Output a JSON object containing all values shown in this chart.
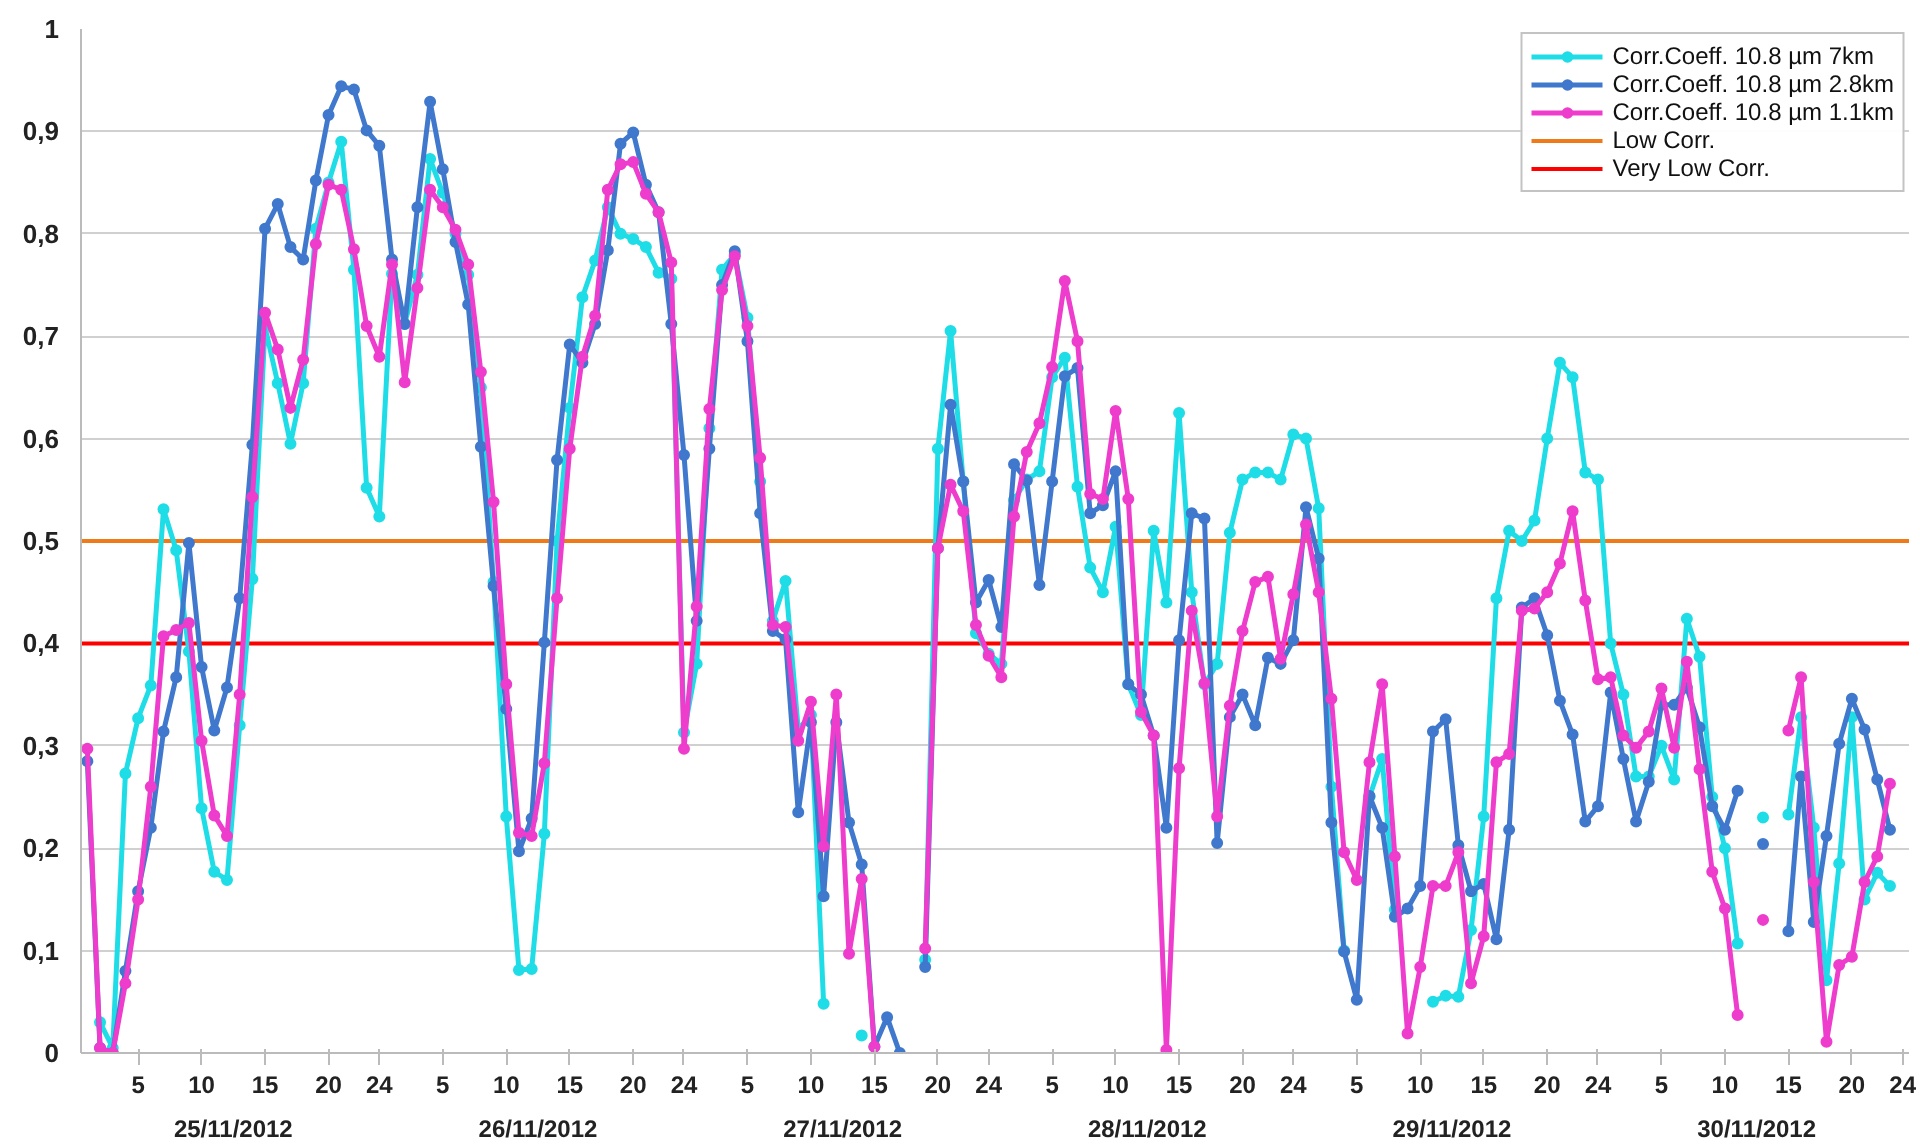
{
  "chart_data": {
    "type": "line",
    "categories": [
      null,
      null,
      null,
      null,
      "5",
      null,
      null,
      null,
      null,
      "10",
      null,
      null,
      null,
      null,
      "15",
      null,
      null,
      null,
      null,
      "20",
      null,
      null,
      null,
      "24",
      null,
      null,
      null,
      null,
      "5",
      null,
      null,
      null,
      null,
      "10",
      null,
      null,
      null,
      null,
      "15",
      null,
      null,
      null,
      null,
      "20",
      null,
      null,
      null,
      "24",
      null,
      null,
      null,
      null,
      "5",
      null,
      null,
      null,
      null,
      "10",
      null,
      null,
      null,
      null,
      "15",
      null,
      null,
      null,
      null,
      "20",
      null,
      null,
      null,
      "24",
      null,
      null,
      null,
      null,
      "5",
      null,
      null,
      null,
      null,
      "10",
      null,
      null,
      null,
      null,
      "15",
      null,
      null,
      null,
      null,
      "20",
      null,
      null,
      null,
      "24",
      null,
      null,
      null,
      null,
      "5",
      null,
      null,
      null,
      null,
      "10",
      null,
      null,
      null,
      null,
      "15",
      null,
      null,
      null,
      null,
      "20",
      null,
      null,
      null,
      "24",
      null,
      null,
      null,
      null,
      "5",
      null,
      null,
      null,
      null,
      "10",
      null,
      null,
      null,
      null,
      "15",
      null,
      null,
      null,
      null,
      "20",
      null,
      null,
      null,
      "24"
    ],
    "series": [
      {
        "name": "Corr.Coeff. 10.8 µm 7km",
        "color": "#1fdde6",
        "values": [
          null,
          0.03,
          0.005,
          0.273,
          0.327,
          0.359,
          0.531,
          0.491,
          0.392,
          0.239,
          0.177,
          0.169,
          0.32,
          0.463,
          0.709,
          0.654,
          0.595,
          0.654,
          0.805,
          0.85,
          0.89,
          0.765,
          0.552,
          0.524,
          0.761,
          0.712,
          0.76,
          0.873,
          0.84,
          0.8,
          0.76,
          0.65,
          0.46,
          0.231,
          0.081,
          0.082,
          0.214,
          0.5,
          0.63,
          0.738,
          0.774,
          0.826,
          0.8,
          0.795,
          0.787,
          0.762,
          0.756,
          0.313,
          0.38,
          0.61,
          0.765,
          0.78,
          0.718,
          0.558,
          0.422,
          0.461,
          0.316,
          0.33,
          0.048,
          null,
          null,
          0.017,
          null,
          null,
          null,
          null,
          0.091,
          0.59,
          0.705,
          0.558,
          0.41,
          0.39,
          0.38,
          0.54,
          0.56,
          0.568,
          0.66,
          0.679,
          0.553,
          0.474,
          0.45,
          0.514,
          0.36,
          0.33,
          0.51,
          0.44,
          0.625,
          0.45,
          0.36,
          0.38,
          0.508,
          0.56,
          0.567,
          0.567,
          0.56,
          0.604,
          0.6,
          0.532,
          0.26,
          0.1,
          null,
          0.25,
          0.287,
          0.14,
          null,
          null,
          0.05,
          0.056,
          0.055,
          0.12,
          0.231,
          0.444,
          0.51,
          0.5,
          0.52,
          0.6,
          0.674,
          0.66,
          0.567,
          0.56,
          0.4,
          0.35,
          0.27,
          0.27,
          0.3,
          0.267,
          0.424,
          0.387,
          0.25,
          0.2,
          0.107,
          null,
          0.23,
          null,
          0.233,
          0.328,
          0.22,
          0.071,
          0.185,
          0.328,
          0.15,
          0.176,
          0.163,
          null
        ]
      },
      {
        "name": "Corr.Coeff. 10.8 µm 2.8km",
        "color": "#3f78cc",
        "values": [
          0.285,
          0.005,
          0,
          0.08,
          0.158,
          0.22,
          0.314,
          0.367,
          0.498,
          0.377,
          0.315,
          0.357,
          0.444,
          0.594,
          0.805,
          0.829,
          0.787,
          0.775,
          0.852,
          0.916,
          0.944,
          0.941,
          0.901,
          0.886,
          0.775,
          0.712,
          0.826,
          0.929,
          0.863,
          0.792,
          0.731,
          0.592,
          0.456,
          0.336,
          0.197,
          0.229,
          0.401,
          0.579,
          0.692,
          0.674,
          0.712,
          0.784,
          0.888,
          0.899,
          0.848,
          0.821,
          0.712,
          0.584,
          0.422,
          0.59,
          0.75,
          0.783,
          0.695,
          0.527,
          0.412,
          0.404,
          0.235,
          0.323,
          0.153,
          0.323,
          0.225,
          0.184,
          0.006,
          0.035,
          0,
          null,
          0.084,
          0.493,
          0.633,
          0.558,
          0.44,
          0.462,
          0.416,
          0.575,
          0.559,
          0.457,
          0.558,
          0.661,
          0.669,
          0.527,
          0.535,
          0.568,
          0.36,
          0.35,
          0.31,
          0.22,
          0.403,
          0.527,
          0.522,
          0.205,
          0.328,
          0.35,
          0.32,
          0.386,
          0.38,
          0.403,
          0.533,
          0.483,
          0.225,
          0.099,
          0.052,
          0.251,
          0.22,
          0.133,
          0.141,
          0.163,
          0.314,
          0.326,
          0.203,
          0.158,
          0.165,
          0.111,
          0.218,
          0.435,
          0.444,
          0.408,
          0.344,
          0.311,
          0.226,
          0.241,
          0.352,
          0.287,
          0.226,
          0.265,
          0.34,
          0.34,
          0.357,
          0.318,
          0.241,
          0.218,
          0.256,
          null,
          0.204,
          null,
          0.119,
          0.27,
          0.128,
          0.212,
          0.302,
          0.346,
          0.316,
          0.267,
          0.218,
          null
        ]
      },
      {
        "name": "Corr.Coeff. 10.8 µm 1.1km",
        "color": "#ee3ccc",
        "values": [
          0.297,
          0.005,
          0,
          0.068,
          0.15,
          0.26,
          0.407,
          0.413,
          0.42,
          0.305,
          0.232,
          0.212,
          0.35,
          0.543,
          0.723,
          0.687,
          0.63,
          0.677,
          0.79,
          0.848,
          0.843,
          0.785,
          0.71,
          0.68,
          0.77,
          0.655,
          0.747,
          0.843,
          0.826,
          0.804,
          0.77,
          0.665,
          0.538,
          0.36,
          0.215,
          0.212,
          0.283,
          0.444,
          0.59,
          0.68,
          0.72,
          0.843,
          0.868,
          0.87,
          0.839,
          0.821,
          0.772,
          0.297,
          0.436,
          0.629,
          0.745,
          0.778,
          0.71,
          0.581,
          0.418,
          0.416,
          0.305,
          0.343,
          0.202,
          0.35,
          0.097,
          0.17,
          0.006,
          null,
          null,
          null,
          0.102,
          0.493,
          0.555,
          0.529,
          0.418,
          0.388,
          0.367,
          0.524,
          0.587,
          0.615,
          0.67,
          0.754,
          0.695,
          0.546,
          0.541,
          0.627,
          0.541,
          0.333,
          0.31,
          0.003,
          0.278,
          0.432,
          0.361,
          0.231,
          0.339,
          0.412,
          0.46,
          0.465,
          0.385,
          0.448,
          0.516,
          0.45,
          0.346,
          0.196,
          0.169,
          0.284,
          0.36,
          0.192,
          0.019,
          0.084,
          0.163,
          0.163,
          0.196,
          0.068,
          0.114,
          0.284,
          0.292,
          0.432,
          0.434,
          0.45,
          0.478,
          0.529,
          0.442,
          0.365,
          0.367,
          0.31,
          0.298,
          0.314,
          0.356,
          0.298,
          0.382,
          0.277,
          0.177,
          0.141,
          0.037,
          null,
          0.13,
          null,
          0.315,
          0.367,
          0.167,
          0.011,
          0.086,
          0.094,
          0.167,
          0.192,
          0.263,
          null
        ]
      }
    ],
    "ref_lines": [
      {
        "axis": "y",
        "value": 0.5,
        "label": "Low Corr.",
        "color": "#ee7a1a"
      },
      {
        "axis": "y",
        "value": 0.4,
        "label": "Very Low Corr.",
        "color": "#ff0000"
      }
    ],
    "ylim": [
      0,
      1
    ],
    "yticks": [
      0,
      {
        "value": 0.1,
        "label": "0,1"
      },
      {
        "value": 0.2,
        "label": "0,2"
      },
      {
        "value": 0.3,
        "label": "0,3"
      },
      {
        "value": 0.4,
        "label": "0,4"
      },
      {
        "value": 0.5,
        "label": "0,5"
      },
      {
        "value": 0.6,
        "label": "0,6"
      },
      {
        "value": 0.7,
        "label": "0,7"
      },
      {
        "value": 0.8,
        "label": "0,8"
      },
      {
        "value": 0.9,
        "label": "0,9"
      },
      1
    ],
    "annotations": [
      "25/11/2012",
      "26/11/2012",
      "27/11/2012",
      "28/11/2012",
      "29/11/2012",
      "30/11/2012"
    ],
    "grid": "y",
    "legend": "top right",
    "marker": "circle",
    "line_style": "solid"
  }
}
